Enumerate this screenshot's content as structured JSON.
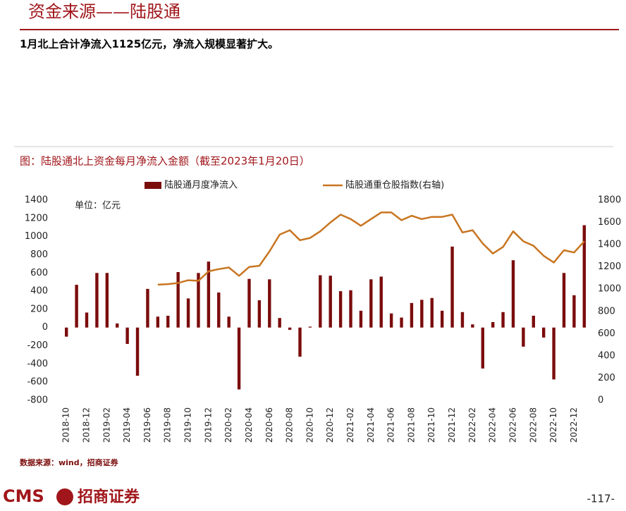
{
  "header": {
    "title": "资金来源——陆股通",
    "subtitle": "1月北上合计净流入1125亿元，净流入规模显著扩大。"
  },
  "chart_data": {
    "type": "bar_line",
    "title": "图：陆股通北上资金每月净流入金额（截至2023年1月20日）",
    "annotation": "单位：亿元",
    "categories": [
      "2018-10",
      null,
      "2018-12",
      null,
      "2019-02",
      null,
      "2019-04",
      null,
      "2019-06",
      null,
      "2019-08",
      null,
      "2019-10",
      null,
      "2019-12",
      null,
      "2020-02",
      null,
      "2020-04",
      null,
      "2020-06",
      null,
      "2020-08",
      null,
      "2020-10",
      null,
      "2020-12",
      null,
      "2021-02",
      null,
      "2021-04",
      null,
      "2021-06",
      null,
      "2021-08",
      null,
      "2021-10",
      null,
      "2021-12",
      null,
      "2022-02",
      null,
      "2022-04",
      null,
      "2022-06",
      null,
      "2022-08",
      null,
      "2022-10",
      null,
      "2022-12",
      null
    ],
    "series": [
      {
        "name": "陆股通月度净流入",
        "type": "bar",
        "color": "#7b0c0c",
        "values": [
          -100,
          470,
          165,
          600,
          600,
          45,
          -180,
          -530,
          425,
          120,
          130,
          610,
          320,
          600,
          725,
          385,
          120,
          -680,
          535,
          300,
          530,
          105,
          -25,
          -320,
          10,
          575,
          570,
          400,
          410,
          185,
          530,
          560,
          155,
          110,
          270,
          305,
          325,
          185,
          890,
          170,
          35,
          -450,
          60,
          170,
          740,
          -210,
          130,
          -110,
          -570,
          600,
          355,
          1125
        ]
      },
      {
        "name": "陆股通重仓股指数(右轴)",
        "type": "line",
        "axis": "y2",
        "color": "#c87521",
        "values": [
          null,
          null,
          null,
          null,
          null,
          null,
          null,
          null,
          null,
          1040,
          1045,
          1055,
          1080,
          1075,
          1160,
          1180,
          1195,
          1120,
          1200,
          1210,
          1340,
          1490,
          1530,
          1440,
          1460,
          1520,
          1600,
          1670,
          1630,
          1570,
          1630,
          1690,
          1690,
          1620,
          1660,
          1630,
          1650,
          1650,
          1670,
          1510,
          1530,
          1410,
          1320,
          1380,
          1520,
          1430,
          1390,
          1300,
          1240,
          1350,
          1330,
          1430
        ]
      }
    ],
    "ylim": [
      -800,
      1400
    ],
    "yticks": [
      -800,
      -600,
      -400,
      -200,
      0,
      200,
      400,
      600,
      800,
      1000,
      1200,
      1400
    ],
    "y2lim": [
      0,
      1800
    ],
    "y2ticks": [
      0,
      200,
      400,
      600,
      800,
      1000,
      1200,
      1400,
      1600,
      1800
    ],
    "legend": "top"
  },
  "source": "数据来源：wind，招商证券",
  "footer": {
    "logo_text": "CMS",
    "company": "招商证券",
    "page": "-117-"
  }
}
